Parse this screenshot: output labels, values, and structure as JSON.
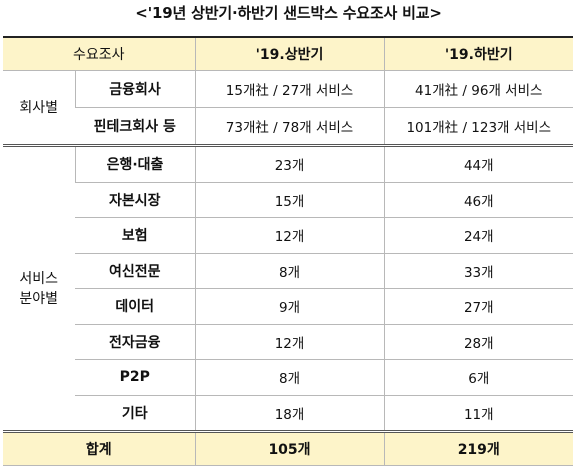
{
  "title": "<'19년 상반기·하반기 샌드박스 수요조사 비교>",
  "header": {
    "label": "수요조사",
    "h1": "'19.상반기",
    "h2": "'19.하반기"
  },
  "company_group": {
    "label": "회사별",
    "rows": [
      {
        "name": "금융회사",
        "h1": "15개社 / 27개 서비스",
        "h2": "41개社 / 96개 서비스"
      },
      {
        "name": "핀테크회사 등",
        "h1": "73개社 / 78개 서비스",
        "h2": "101개社 / 123개 서비스"
      }
    ]
  },
  "service_group": {
    "label_line1": "서비스",
    "label_line2": "분야별",
    "rows": [
      {
        "name": "은행·대출",
        "h1": "23개",
        "h2": "44개"
      },
      {
        "name": "자본시장",
        "h1": "15개",
        "h2": "46개"
      },
      {
        "name": "보험",
        "h1": "12개",
        "h2": "24개"
      },
      {
        "name": "여신전문",
        "h1": "8개",
        "h2": "33개"
      },
      {
        "name": "데이터",
        "h1": "9개",
        "h2": "27개"
      },
      {
        "name": "전자금융",
        "h1": "12개",
        "h2": "28개"
      },
      {
        "name": "P2P",
        "h1": "8개",
        "h2": "6개"
      },
      {
        "name": "기타",
        "h1": "18개",
        "h2": "11개"
      }
    ]
  },
  "total": {
    "label": "합계",
    "h1": "105개",
    "h2": "219개"
  }
}
